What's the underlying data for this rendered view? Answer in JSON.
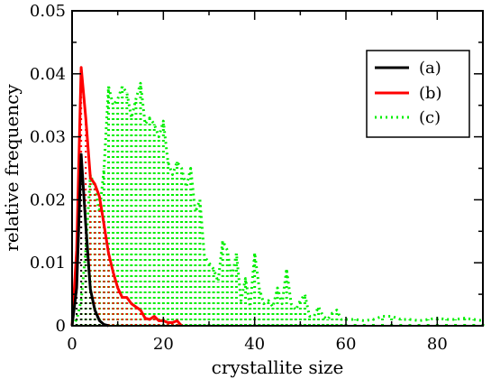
{
  "chart_data": {
    "type": "line",
    "xlabel": "crystallite size",
    "ylabel": "relative frequency",
    "xlim": [
      0,
      90
    ],
    "ylim": [
      0,
      0.05
    ],
    "x_ticks": [
      0,
      20,
      40,
      60,
      80
    ],
    "y_ticks": [
      0,
      0.01,
      0.02,
      0.03,
      0.04,
      0.05
    ],
    "x_tick_labels": [
      "0",
      "20",
      "40",
      "60",
      "80"
    ],
    "y_tick_labels": [
      "0",
      "0.01",
      "0.02",
      "0.03",
      "0.04",
      "0.05"
    ],
    "grid": false,
    "legend": "top-right",
    "series": [
      {
        "name": "(a)",
        "color": "#000000",
        "style": "solid",
        "x": [
          0,
          1,
          2,
          3,
          4,
          5,
          6,
          7,
          8
        ],
        "y": [
          0,
          0.006,
          0.0272,
          0.016,
          0.0058,
          0.0025,
          0.0008,
          0.0002,
          0
        ]
      },
      {
        "name": "(b)",
        "color": "#ff0000",
        "style": "solid",
        "x": [
          0,
          1,
          2,
          3,
          4,
          5,
          6,
          7,
          8,
          9,
          10,
          11,
          12,
          13,
          14,
          15,
          16,
          17,
          18,
          19,
          20,
          21,
          22,
          23,
          24
        ],
        "y": [
          0,
          0.012,
          0.041,
          0.033,
          0.0235,
          0.0225,
          0.0205,
          0.016,
          0.0115,
          0.0085,
          0.006,
          0.0045,
          0.0045,
          0.0035,
          0.003,
          0.0025,
          0.0012,
          0.001,
          0.0015,
          0.0008,
          0.0008,
          0.0005,
          0.0005,
          0.0008,
          0
        ]
      },
      {
        "name": "(c)",
        "color": "#00ee00",
        "style": "dotted",
        "x": [
          0,
          1,
          2,
          3,
          4,
          5,
          6,
          7,
          8,
          9,
          10,
          11,
          12,
          13,
          14,
          15,
          16,
          17,
          18,
          19,
          20,
          21,
          22,
          23,
          24,
          25,
          26,
          27,
          28,
          29,
          30,
          31,
          32,
          33,
          34,
          35,
          36,
          37,
          38,
          39,
          40,
          41,
          42,
          43,
          44,
          45,
          46,
          47,
          48,
          49,
          50,
          51,
          52,
          53,
          54,
          55,
          56,
          57,
          58,
          59,
          60,
          62,
          64,
          66,
          68,
          70,
          72,
          74,
          76,
          78,
          80,
          82,
          84,
          86,
          88,
          90
        ],
        "y": [
          0,
          0.001,
          0.004,
          0.012,
          0.024,
          0.022,
          0.018,
          0.025,
          0.038,
          0.035,
          0.036,
          0.038,
          0.037,
          0.033,
          0.036,
          0.0385,
          0.032,
          0.033,
          0.032,
          0.03,
          0.0325,
          0.026,
          0.024,
          0.026,
          0.025,
          0.022,
          0.025,
          0.018,
          0.02,
          0.011,
          0.01,
          0.009,
          0.007,
          0.0135,
          0.012,
          0.0075,
          0.0115,
          0.004,
          0.0075,
          0.003,
          0.0115,
          0.006,
          0.0035,
          0.004,
          0.003,
          0.006,
          0.0035,
          0.009,
          0.0035,
          0.0025,
          0.004,
          0.005,
          0.0015,
          0.0015,
          0.003,
          0.0015,
          0.001,
          0.002,
          0.0025,
          0.001,
          0.001,
          0.001,
          0.0008,
          0.001,
          0.0015,
          0.0015,
          0.001,
          0.001,
          0.0008,
          0.001,
          0.0012,
          0.001,
          0.001,
          0.0012,
          0.001,
          0.0008
        ]
      }
    ]
  }
}
